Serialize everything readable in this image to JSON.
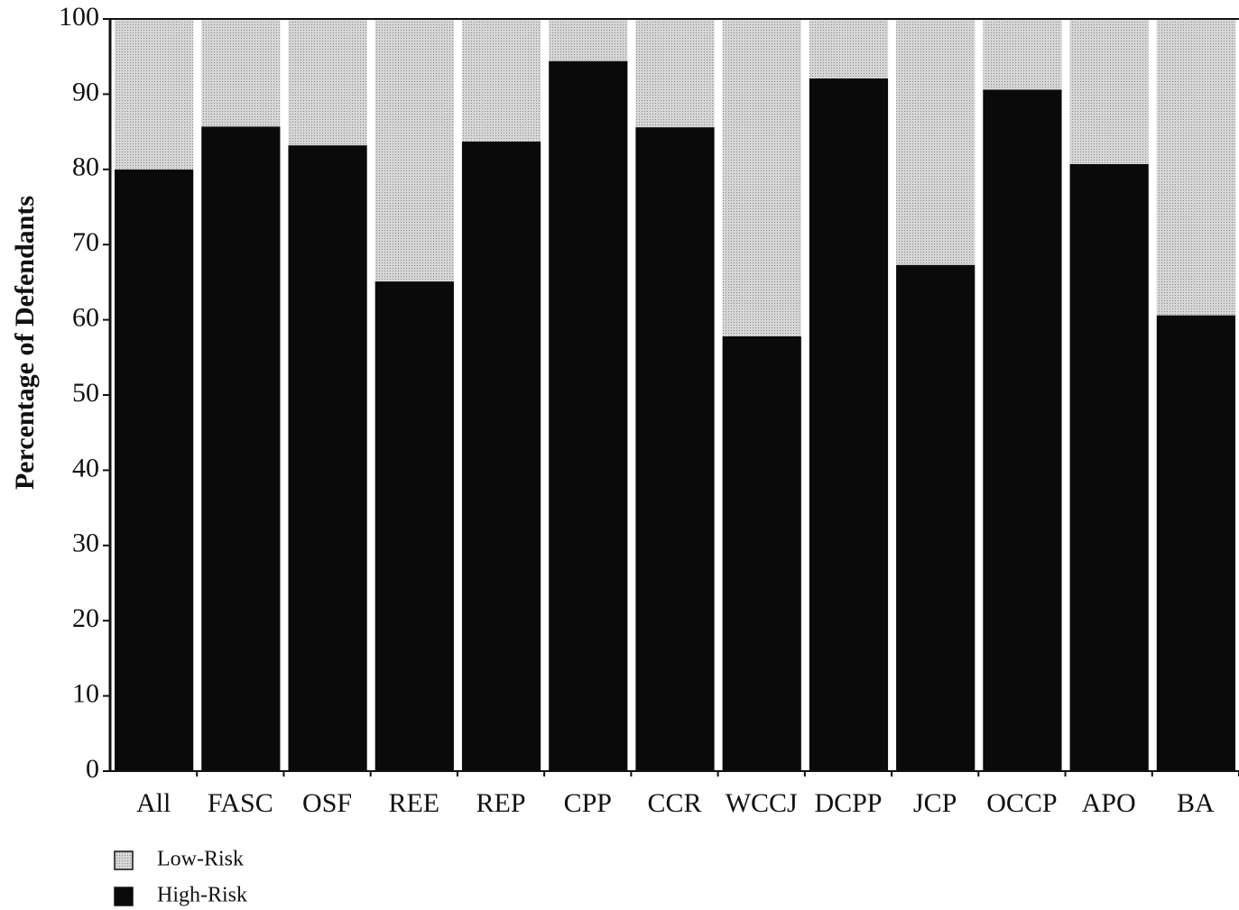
{
  "chart_data": {
    "type": "stacked_bar",
    "y_label": "Percentage of Defendants",
    "categories": [
      "All",
      "FASC",
      "OSF",
      "REE",
      "REP",
      "CPP",
      "CCR",
      "WCCJ",
      "DCPP",
      "JCP",
      "OCCP",
      "APO",
      "BA"
    ],
    "series": [
      {
        "name": "High-Risk",
        "color": "#0a0a0a",
        "values": [
          80,
          85.7,
          83.2,
          65.1,
          83.7,
          94.4,
          85.6,
          57.8,
          92.1,
          67.3,
          90.6,
          80.7,
          60.6
        ]
      },
      {
        "name": "Low-Risk",
        "color": "#c9c9c9",
        "values": [
          20,
          14.3,
          16.8,
          34.9,
          16.3,
          5.6,
          14.4,
          42.2,
          7.9,
          32.7,
          9.4,
          19.3,
          39.4
        ]
      }
    ],
    "ylim": [
      0,
      100
    ],
    "yticks": [
      0,
      10,
      20,
      30,
      40,
      50,
      60,
      70,
      80,
      90,
      100
    ]
  }
}
